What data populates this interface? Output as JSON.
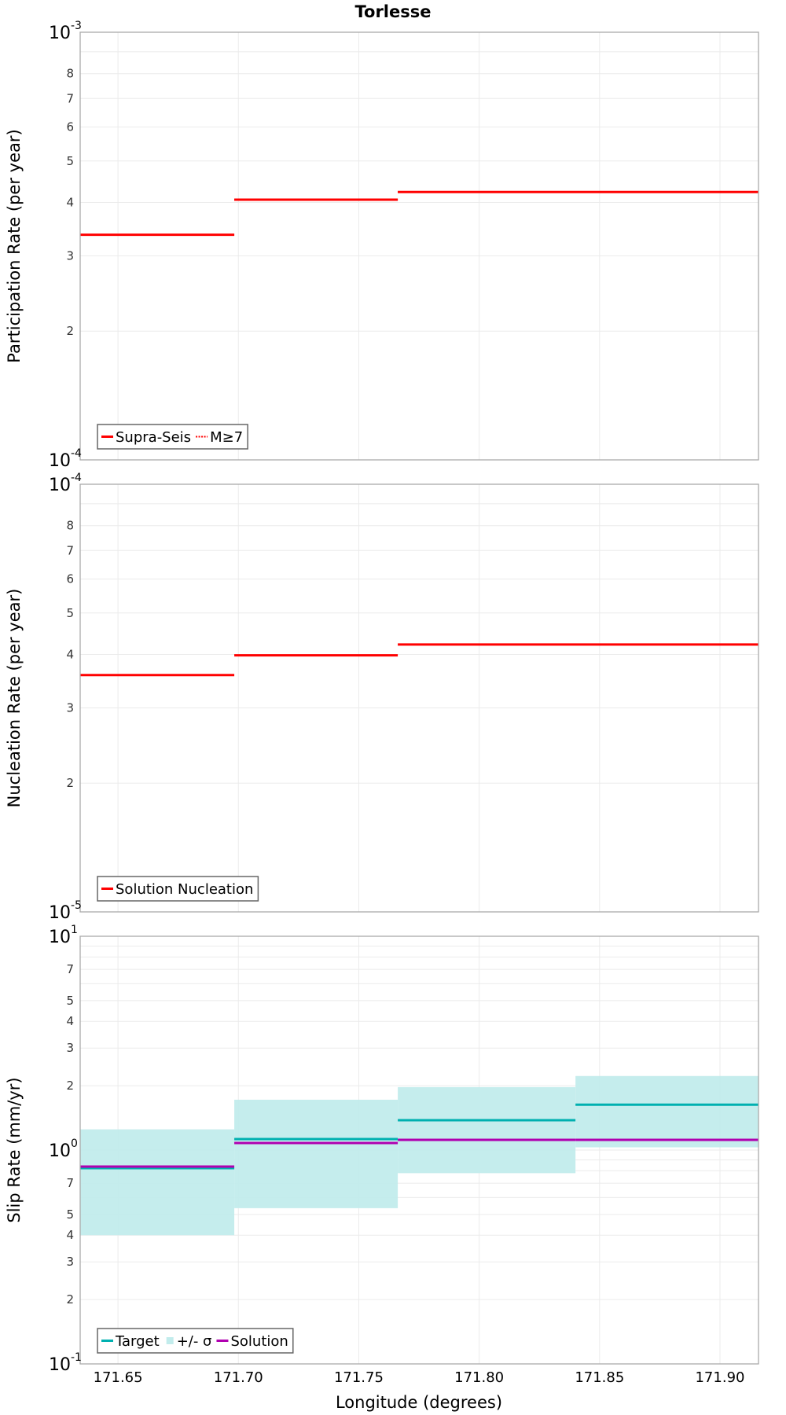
{
  "title": "Torlesse",
  "x_axis": {
    "label": "Longitude (degrees)",
    "range": [
      171.6343,
      171.916
    ],
    "ticks": [
      171.65,
      171.7,
      171.75,
      171.8,
      171.85,
      171.9
    ],
    "tick_labels": [
      "171.65",
      "171.70",
      "171.75",
      "171.80",
      "171.85",
      "171.90"
    ]
  },
  "colors": {
    "red": "#ff0000",
    "target": "#00b0b0",
    "band": "#c2ecec",
    "solution": "#b000b0",
    "grid": "#ebebeb",
    "frame": "#aaaaaa"
  },
  "chart_data": [
    {
      "type": "line",
      "subtype": "step",
      "title": "Torlesse",
      "xlabel": "Longitude (degrees)",
      "ylabel": "Participation Rate (per year)",
      "yscale": "log",
      "ylim": [
        0.0001,
        0.001
      ],
      "xlim": [
        171.6343,
        171.916
      ],
      "grid": true,
      "legend_position": "lower left",
      "y_major_labels": [
        {
          "base": "10",
          "exp": "-3",
          "value": 0.001
        },
        {
          "base": "10",
          "exp": "-4",
          "value": 0.0001
        }
      ],
      "y_minor_labels": [
        "2",
        "3",
        "4",
        "5",
        "6",
        "7",
        "8"
      ],
      "legend": [
        {
          "label": "Supra-Seis",
          "style": "solid",
          "color": "#ff0000"
        },
        {
          "label": "M≥7",
          "style": "dotted",
          "color": "#ff0000"
        }
      ],
      "series": [
        {
          "name": "Supra-Seis",
          "style": "solid",
          "color": "#ff0000",
          "segments": [
            {
              "x0": 171.6343,
              "x1": 171.6983,
              "y": 0.000336
            },
            {
              "x0": 171.6983,
              "x1": 171.7662,
              "y": 0.000406
            },
            {
              "x0": 171.7662,
              "x1": 171.916,
              "y": 0.000423
            }
          ]
        },
        {
          "name": "M≥7",
          "style": "dotted",
          "color": "#ff0000",
          "segments": [
            {
              "x0": 171.6343,
              "x1": 171.6983,
              "y": 0.000336
            },
            {
              "x0": 171.6983,
              "x1": 171.7662,
              "y": 0.000406
            },
            {
              "x0": 171.7662,
              "x1": 171.916,
              "y": 0.000423
            }
          ]
        }
      ]
    },
    {
      "type": "line",
      "subtype": "step",
      "xlabel": "Longitude (degrees)",
      "ylabel": "Nucleation Rate (per year)",
      "yscale": "log",
      "ylim": [
        1e-05,
        0.0001
      ],
      "xlim": [
        171.6343,
        171.916
      ],
      "grid": true,
      "legend_position": "lower left",
      "y_major_labels": [
        {
          "base": "10",
          "exp": "-4",
          "value": 0.0001
        },
        {
          "base": "10",
          "exp": "-5",
          "value": 1e-05
        }
      ],
      "y_minor_labels": [
        "2",
        "3",
        "4",
        "5",
        "6",
        "7",
        "8"
      ],
      "legend": [
        {
          "label": "Solution Nucleation",
          "style": "solid",
          "color": "#ff0000"
        }
      ],
      "series": [
        {
          "name": "Solution Nucleation",
          "style": "solid",
          "color": "#ff0000",
          "segments": [
            {
              "x0": 171.6343,
              "x1": 171.6983,
              "y": 3.58e-05
            },
            {
              "x0": 171.6983,
              "x1": 171.7662,
              "y": 3.98e-05
            },
            {
              "x0": 171.7662,
              "x1": 171.916,
              "y": 4.22e-05
            }
          ]
        }
      ]
    },
    {
      "type": "line",
      "subtype": "step",
      "xlabel": "Longitude (degrees)",
      "ylabel": "Slip Rate (mm/yr)",
      "yscale": "log",
      "ylim": [
        0.1,
        10
      ],
      "xlim": [
        171.6343,
        171.916
      ],
      "grid": true,
      "legend_position": "lower left",
      "y_major_labels": [
        {
          "base": "10",
          "exp": "1",
          "value": 10
        },
        {
          "base": "10",
          "exp": "0",
          "value": 1
        },
        {
          "base": "10",
          "exp": "-1",
          "value": 0.1
        }
      ],
      "y_minor_labels": [
        "2",
        "3",
        "4",
        "5",
        "7"
      ],
      "legend": [
        {
          "label": "Target",
          "style": "solid",
          "color": "#00b0b0"
        },
        {
          "label": "+/- σ",
          "style": "band",
          "color": "#c2ecec"
        },
        {
          "label": "Solution",
          "style": "solid",
          "color": "#b000b0"
        }
      ],
      "series": [
        {
          "name": "+/- σ",
          "style": "band",
          "color": "#c2ecec",
          "segments": [
            {
              "x0": 171.6343,
              "x1": 171.6983,
              "low": 0.4,
              "high": 1.25
            },
            {
              "x0": 171.6983,
              "x1": 171.7662,
              "low": 0.535,
              "high": 1.72
            },
            {
              "x0": 171.7662,
              "x1": 171.84,
              "low": 0.78,
              "high": 1.97
            },
            {
              "x0": 171.84,
              "x1": 171.916,
              "low": 1.03,
              "high": 2.22
            }
          ]
        },
        {
          "name": "Target",
          "style": "solid",
          "color": "#00b0b0",
          "segments": [
            {
              "x0": 171.6343,
              "x1": 171.6983,
              "y": 0.823
            },
            {
              "x0": 171.6983,
              "x1": 171.7662,
              "y": 1.126
            },
            {
              "x0": 171.7662,
              "x1": 171.84,
              "y": 1.38
            },
            {
              "x0": 171.84,
              "x1": 171.916,
              "y": 1.63
            }
          ]
        },
        {
          "name": "Solution",
          "style": "solid",
          "color": "#b000b0",
          "segments": [
            {
              "x0": 171.6343,
              "x1": 171.6983,
              "y": 0.837
            },
            {
              "x0": 171.6983,
              "x1": 171.7662,
              "y": 1.079
            },
            {
              "x0": 171.7662,
              "x1": 171.84,
              "y": 1.116
            },
            {
              "x0": 171.84,
              "x1": 171.916,
              "y": 1.116
            }
          ]
        }
      ]
    }
  ]
}
